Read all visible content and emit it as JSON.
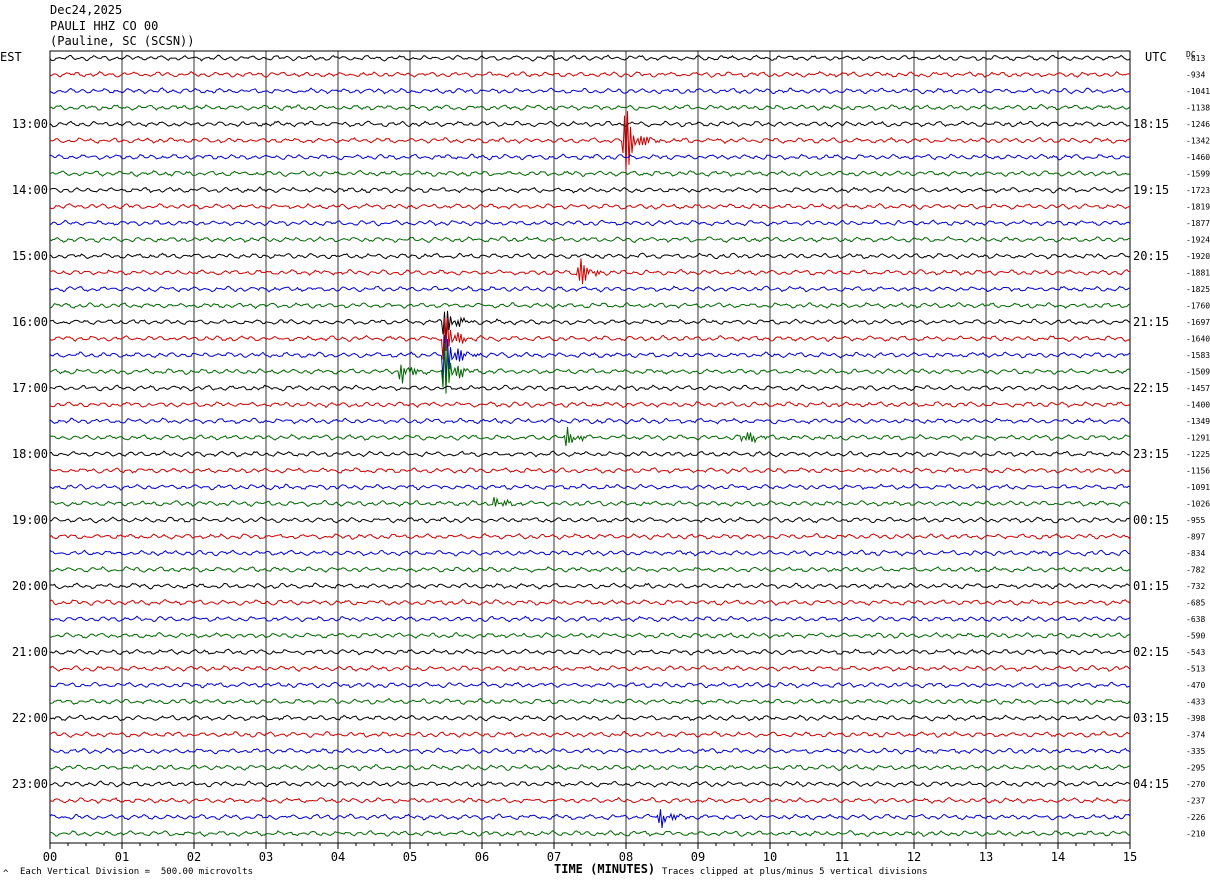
{
  "header": {
    "date": "Dec24,2025",
    "station": "PAULI HHZ CO 00",
    "location": "(Pauline, SC (SCSN))"
  },
  "left_axis_label": "EST",
  "right_axis_label": "UTC",
  "dc_label": "DC",
  "footer": {
    "scale_note": "Each Vertical Division =  500.00 microvolts",
    "x_title": "TIME (MINUTES)",
    "clip_note": "Traces clipped at plus/minus 5 vertical divisions",
    "corner_mark": "^"
  },
  "colors": {
    "trace_cycle": [
      "#000000",
      "#cc0000",
      "#0000cc",
      "#006600"
    ],
    "grid": "#000000",
    "background": "#ffffff"
  },
  "chart_data": {
    "type": "line",
    "title": "PAULI HHZ CO 00",
    "xlabel": "TIME (MINUTES)",
    "x_ticks": [
      "00",
      "01",
      "02",
      "03",
      "04",
      "05",
      "06",
      "07",
      "08",
      "09",
      "10",
      "11",
      "12",
      "13",
      "14",
      "15"
    ],
    "xlim": [
      0,
      15
    ],
    "trace_count": 48,
    "traces_per_hour": 4,
    "minutes_per_trace": 15,
    "est_hour_labels": [
      "13:00",
      "14:00",
      "15:00",
      "16:00",
      "17:00",
      "18:00",
      "19:00",
      "20:00",
      "21:00",
      "22:00",
      "23:00"
    ],
    "est_label_trace_index": [
      4,
      8,
      12,
      16,
      20,
      24,
      28,
      32,
      36,
      40,
      44
    ],
    "utc_hour_labels": [
      "18:15",
      "19:15",
      "20:15",
      "21:15",
      "22:15",
      "23:15",
      "00:15",
      "01:15",
      "02:15",
      "03:15",
      "04:15"
    ],
    "utc_label_trace_index": [
      4,
      8,
      12,
      16,
      20,
      24,
      28,
      32,
      36,
      40,
      44
    ],
    "dc_offsets": [
      -813,
      -934,
      -1041,
      -1138,
      -1246,
      -1342,
      -1460,
      -1599,
      -1723,
      -1819,
      -1877,
      -1924,
      -1920,
      -1881,
      -1825,
      -1760,
      -1697,
      -1640,
      -1583,
      -1509,
      -1457,
      -1400,
      -1349,
      -1291,
      -1225,
      -1156,
      -1091,
      -1026,
      -955,
      -897,
      -834,
      -782,
      -732,
      -685,
      -638,
      -590,
      -543,
      -513,
      -470,
      -433,
      -398,
      -374,
      -335,
      -295,
      -270,
      -237,
      -226,
      -210
    ],
    "events": [
      {
        "trace": 5,
        "minute": 8.0,
        "amplitude": 2.0
      },
      {
        "trace": 13,
        "minute": 7.35,
        "amplitude": 0.9
      },
      {
        "trace": 16,
        "minute": 5.5,
        "amplitude": 1.0
      },
      {
        "trace": 17,
        "minute": 5.5,
        "amplitude": 1.2
      },
      {
        "trace": 18,
        "minute": 5.5,
        "amplitude": 1.5
      },
      {
        "trace": 19,
        "minute": 5.5,
        "amplitude": 1.5
      },
      {
        "trace": 19,
        "minute": 4.9,
        "amplitude": 0.6
      },
      {
        "trace": 23,
        "minute": 7.2,
        "amplitude": 0.5
      },
      {
        "trace": 23,
        "minute": 9.65,
        "amplitude": 0.5
      },
      {
        "trace": 27,
        "minute": 6.2,
        "amplitude": 0.4
      },
      {
        "trace": 46,
        "minute": 8.5,
        "amplitude": 0.5
      }
    ]
  }
}
